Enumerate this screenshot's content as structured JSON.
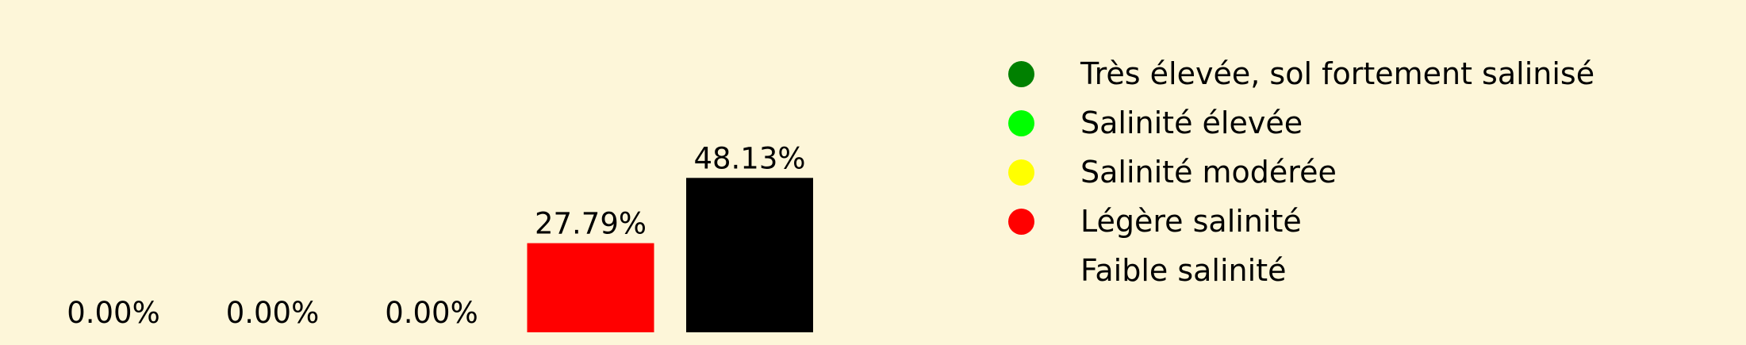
{
  "chart_data": {
    "type": "bar",
    "categories": [
      "Très élevée, sol fortement salinisé",
      "Salinité élevée",
      "Salinité modérée",
      "Légère salinité",
      "Faible salinité"
    ],
    "values": [
      0.0,
      0.0,
      0.0,
      27.79,
      48.13
    ],
    "data_labels": [
      "0.00%",
      "0.00%",
      "0.00%",
      "27.79%",
      "48.13%"
    ],
    "colors": [
      "#008000",
      "#00ff00",
      "#ffff00",
      "#ff0000",
      "#000000"
    ],
    "ylim": [
      0,
      50
    ],
    "grid": false,
    "legend": "top-right"
  },
  "legend": {
    "items": [
      {
        "label": "Très élevée, sol fortement salinisé",
        "color": "#008000"
      },
      {
        "label": "Salinité élevée",
        "color": "#00ff00"
      },
      {
        "label": "Salinité modérée",
        "color": "#ffff00"
      },
      {
        "label": "Légère salinité",
        "color": "#ff0000"
      },
      {
        "label": "Faible salinité",
        "color": "#000000"
      }
    ]
  }
}
